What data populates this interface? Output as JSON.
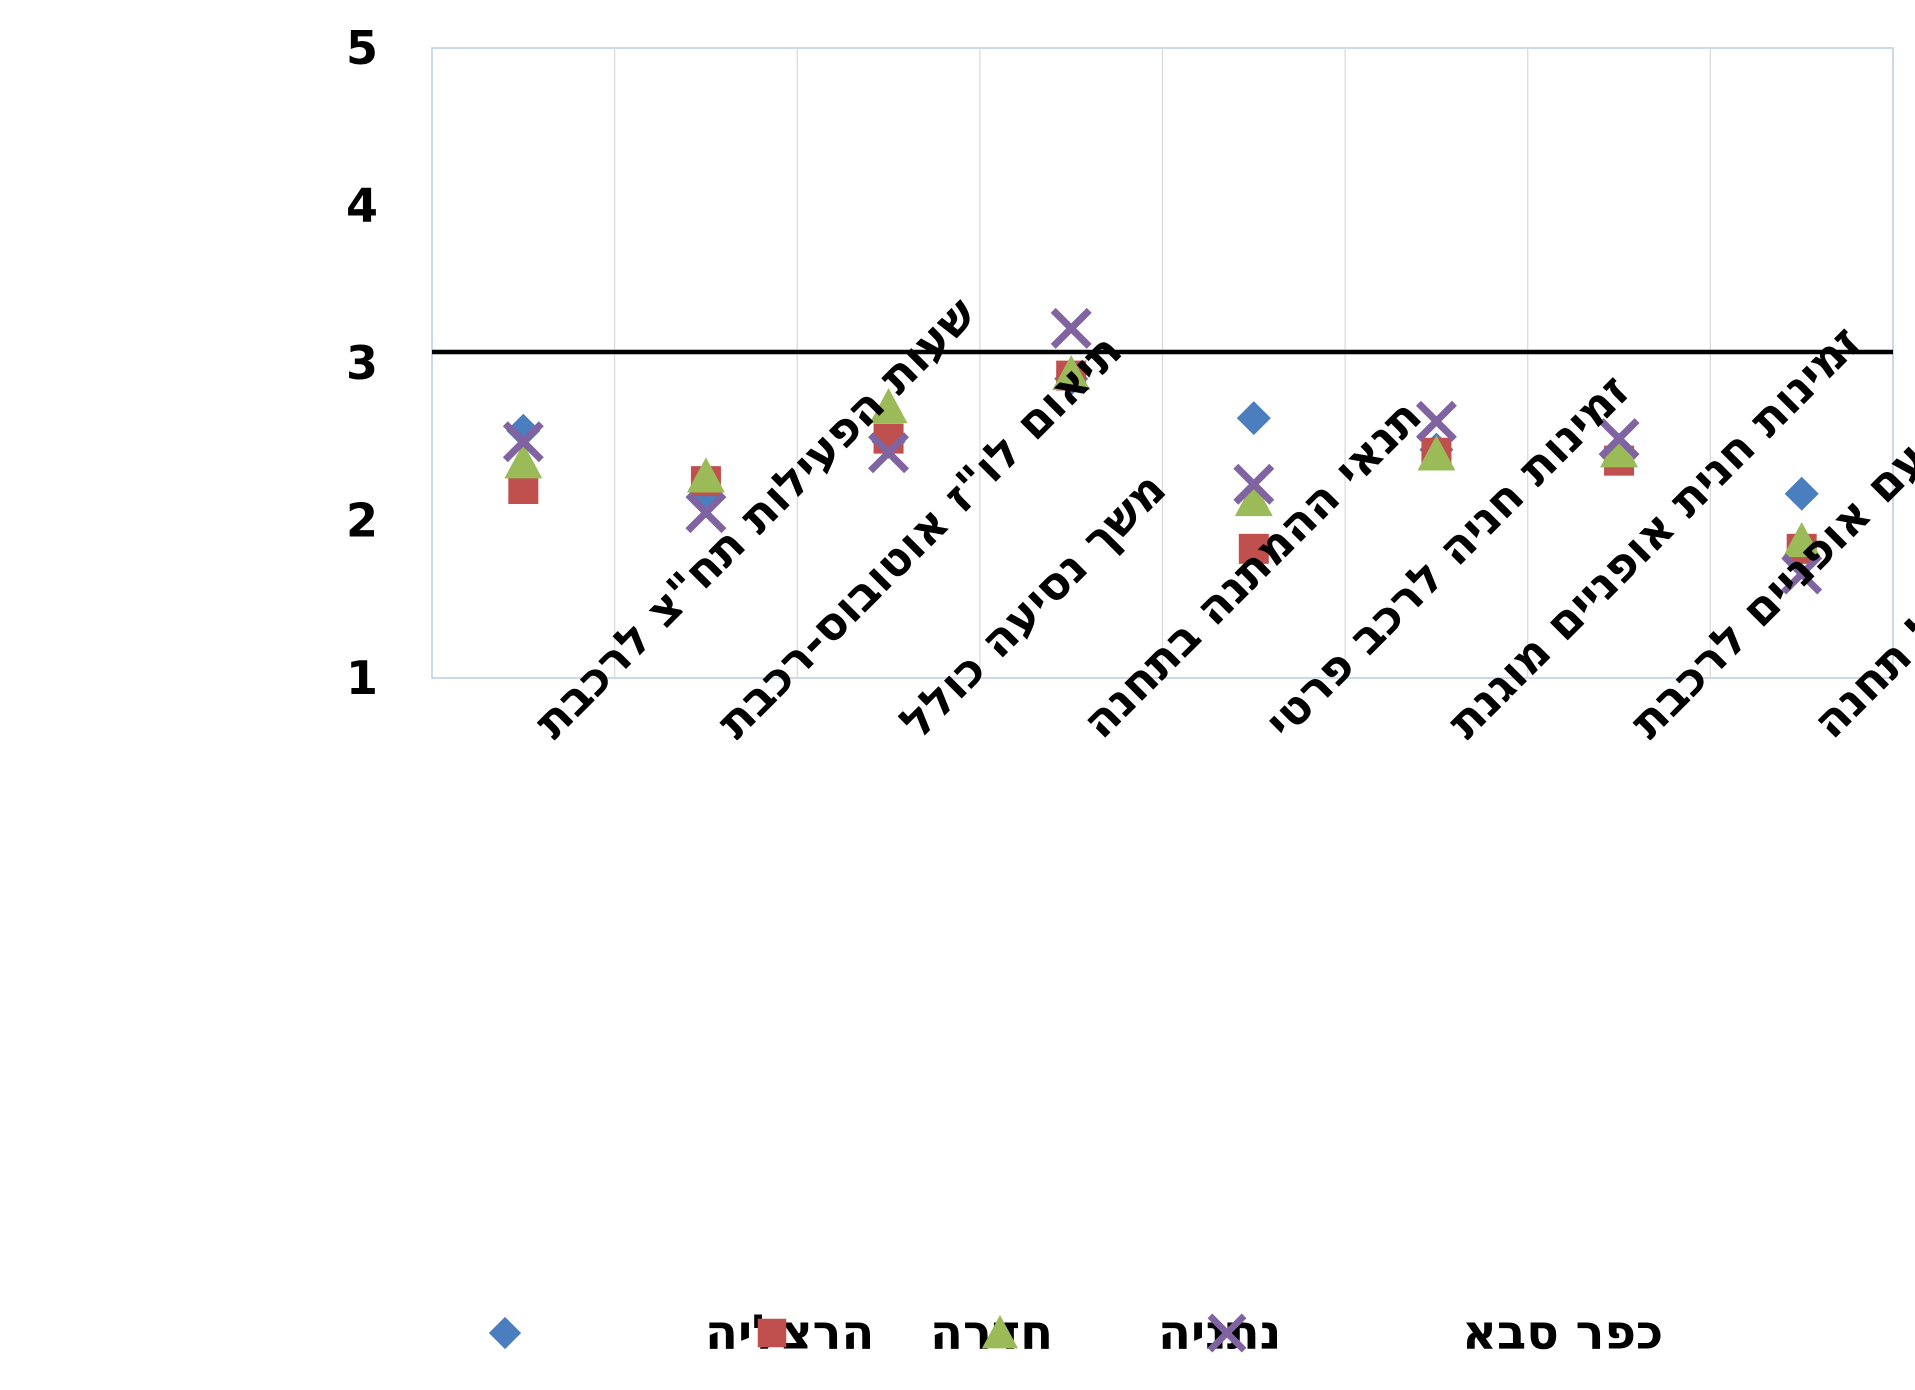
{
  "chart_data": {
    "type": "scatter",
    "categories": [
      "שעות הפעילות תח\"צ לרכבת",
      "תיאום לו\"ז אוטובוס-רכבת",
      "משך נסיעה כולל",
      "תנאי ההמתנה בתחנה",
      "זמינות חניה לרכב פרטי",
      "זמינות חנית אופניים מוגנת",
      "עליה עם אופניים לרכבת",
      "בטיחות שבילים מ/ל תחנה"
    ],
    "series": [
      {
        "name": "הרצליה",
        "marker": "diamond",
        "color": "#4a7ebf",
        "values": [
          2.57,
          2.17,
          2.5,
          2.9,
          2.65,
          2.45,
          2.4,
          2.17
        ]
      },
      {
        "name": "חדרה",
        "marker": "square",
        "color": "#c0504d",
        "values": [
          2.2,
          2.25,
          2.52,
          2.92,
          1.82,
          2.43,
          2.38,
          1.82
        ]
      },
      {
        "name": "נתניה",
        "marker": "triangle",
        "color": "#9bbb59",
        "values": [
          2.37,
          2.28,
          2.72,
          2.93,
          2.13,
          2.42,
          2.44,
          1.87
        ]
      },
      {
        "name": "כפר סבא",
        "marker": "x",
        "color": "#8064a2",
        "values": [
          2.5,
          2.05,
          2.43,
          3.22,
          2.23,
          2.63,
          2.52,
          1.66
        ]
      }
    ],
    "yticks": [
      "1",
      "2",
      "3",
      "4",
      "5"
    ],
    "ylim": [
      1,
      5
    ],
    "reference_line": 3.07,
    "grid": "vertical",
    "legend_position": "bottom"
  }
}
